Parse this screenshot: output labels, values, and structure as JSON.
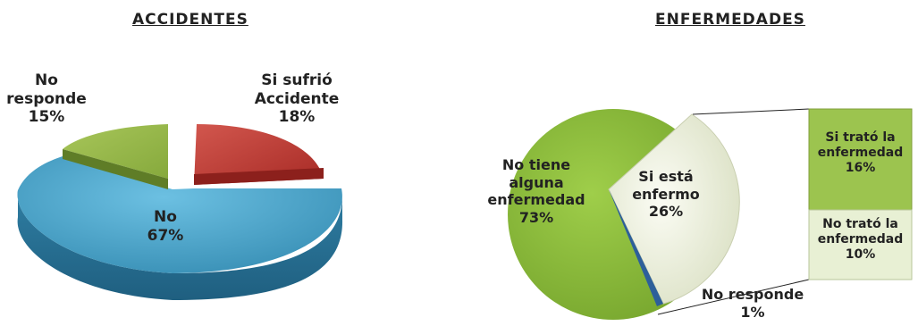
{
  "chart_data": [
    {
      "type": "pie",
      "title": "ACCIDENTES",
      "slices": [
        {
          "label_lines": [
            "Si sufrió",
            "Accidente"
          ],
          "value": 18,
          "value_text": "18%",
          "color": "#b5342d"
        },
        {
          "label_lines": [
            "No"
          ],
          "value": 67,
          "value_text": "67%",
          "color": "#43a2c8"
        },
        {
          "label_lines": [
            "No",
            "responde"
          ],
          "value": 15,
          "value_text": "15%",
          "color": "#8fb43f"
        }
      ]
    },
    {
      "type": "pie",
      "title": "ENFERMEDADES",
      "slices": [
        {
          "label_lines": [
            "Si está",
            "enfermo"
          ],
          "value": 26,
          "value_text": "26%",
          "color": "#eef1df"
        },
        {
          "label_lines": [
            "No responde"
          ],
          "value": 1,
          "value_text": "1%",
          "color": "#2d5f9a"
        },
        {
          "label_lines": [
            "No tiene",
            "alguna",
            "enfermedad"
          ],
          "value": 73,
          "value_text": "73%",
          "color": "#8fbc3b"
        }
      ],
      "breakdown": {
        "of": "Si está enfermo",
        "bars": [
          {
            "label_lines": [
              "Si trató la",
              "enfermedad"
            ],
            "value": 16,
            "value_text": "16%",
            "color": "#9cc44f"
          },
          {
            "label_lines": [
              "No trató la",
              "enfermedad"
            ],
            "value": 10,
            "value_text": "10%",
            "color": "#e6efd2"
          }
        ]
      }
    }
  ]
}
